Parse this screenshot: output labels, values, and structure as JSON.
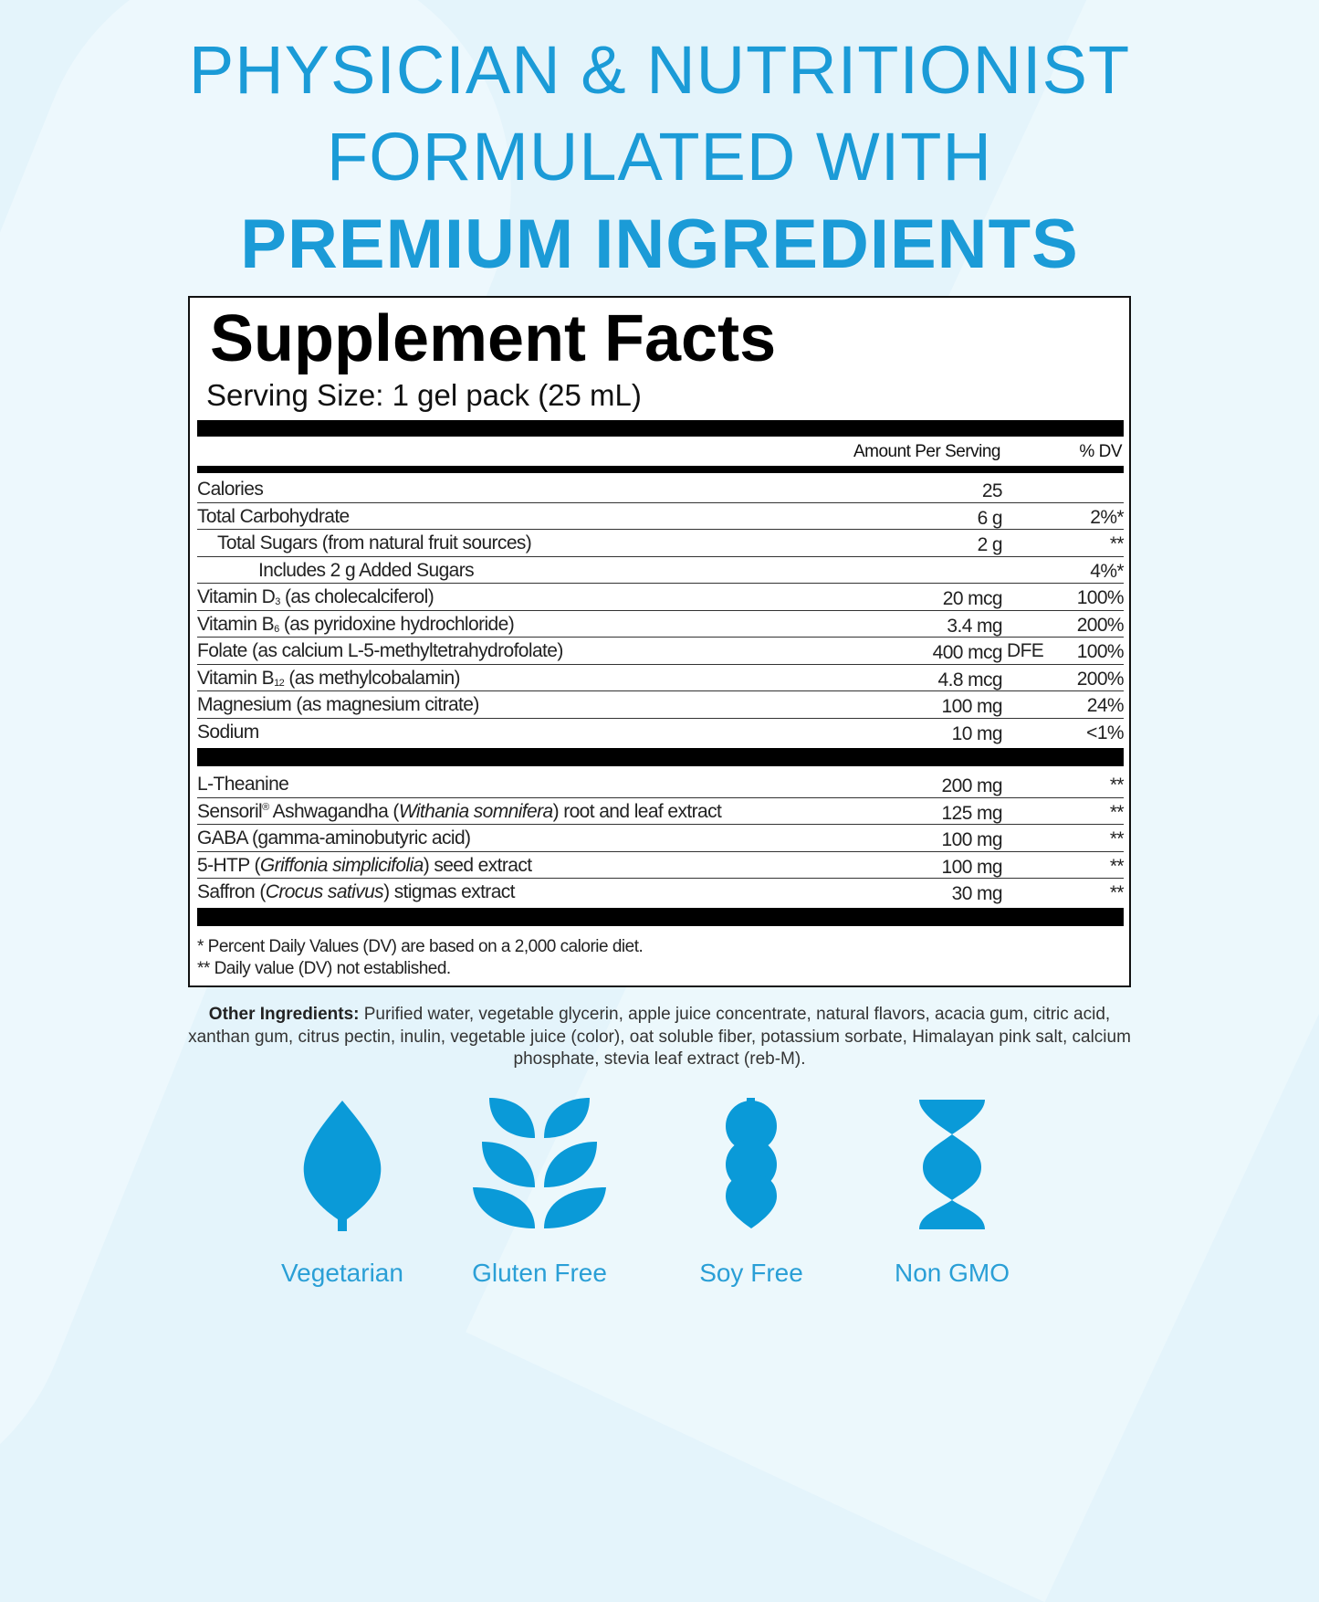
{
  "colors": {
    "accent": "#1b9bd7",
    "background": "#e4f4fb",
    "icon": "#0a9ad8"
  },
  "headline": {
    "line1": "PHYSICIAN & NUTRITIONIST",
    "line2": "FORMULATED WITH",
    "line3": "PREMIUM INGREDIENTS"
  },
  "facts": {
    "title": "Supplement Facts",
    "serving_size": "Serving Size: 1 gel pack (25 mL)",
    "col_amount": "Amount Per Serving",
    "col_dv": "% DV",
    "nutrients": [
      {
        "name": [
          {
            "t": "Calories"
          }
        ],
        "amount": "25",
        "dv": ""
      },
      {
        "name": [
          {
            "t": "Total Carbohydrate"
          }
        ],
        "amount": "6 g",
        "dv": "2%*"
      },
      {
        "name": [
          {
            "t": "Total Sugars (from natural fruit sources)"
          }
        ],
        "indent": 1,
        "amount": "2 g",
        "dv": "**"
      },
      {
        "name": [
          {
            "t": "Includes 2 g Added Sugars"
          }
        ],
        "indent": 2,
        "amount": "",
        "dv": "4%*"
      },
      {
        "name": [
          {
            "t": "Vitamin D"
          },
          {
            "t": "3",
            "s": "sub"
          },
          {
            "t": " (as cholecalciferol)"
          }
        ],
        "amount": "20 mcg",
        "dv": "100%"
      },
      {
        "name": [
          {
            "t": "Vitamin B"
          },
          {
            "t": "6",
            "s": "sub"
          },
          {
            "t": " (as pyridoxine hydrochloride)"
          }
        ],
        "amount": "3.4 mg",
        "dv": "200%"
      },
      {
        "name": [
          {
            "t": "Folate (as calcium L-5-methyltetrahydrofolate)"
          }
        ],
        "amount": "400 mcg",
        "extra": "DFE",
        "dv": "100%"
      },
      {
        "name": [
          {
            "t": "Vitamin B"
          },
          {
            "t": "12",
            "s": "sub"
          },
          {
            "t": " (as methylcobalamin)"
          }
        ],
        "amount": "4.8 mcg",
        "dv": "200%"
      },
      {
        "name": [
          {
            "t": "Magnesium (as magnesium citrate)"
          }
        ],
        "amount": "100 mg",
        "dv": "24%"
      },
      {
        "name": [
          {
            "t": "Sodium"
          }
        ],
        "amount": "10 mg",
        "dv": "<1%"
      }
    ],
    "actives": [
      {
        "name": [
          {
            "t": "L-Theanine"
          }
        ],
        "amount": "200 mg",
        "dv": "**"
      },
      {
        "name": [
          {
            "t": "Sensoril"
          },
          {
            "t": "®",
            "s": "sup"
          },
          {
            "t": " Ashwagandha ("
          },
          {
            "t": "Withania somnifera",
            "s": "i"
          },
          {
            "t": ") root and leaf extract"
          }
        ],
        "amount": "125 mg",
        "dv": "**"
      },
      {
        "name": [
          {
            "t": "GABA (gamma-aminobutyric acid)"
          }
        ],
        "amount": "100 mg",
        "dv": "**"
      },
      {
        "name": [
          {
            "t": "5-HTP ("
          },
          {
            "t": "Griffonia simplicifolia",
            "s": "i"
          },
          {
            "t": ") seed extract"
          }
        ],
        "amount": "100 mg",
        "dv": "**"
      },
      {
        "name": [
          {
            "t": "Saffron ("
          },
          {
            "t": "Crocus sativus",
            "s": "i"
          },
          {
            "t": ") stigmas extract"
          }
        ],
        "amount": "30 mg",
        "dv": "**"
      }
    ],
    "footnote1": "* Percent Daily Values (DV) are based on a 2,000 calorie diet.",
    "footnote2": "** Daily value (DV) not established."
  },
  "other_ingredients": {
    "label": "Other Ingredients:",
    "text": " Purified water, vegetable glycerin, apple juice concentrate, natural flavors, acacia gum, citric acid, xanthan gum, citrus pectin, inulin, vegetable juice (color), oat soluble fiber, potassium sorbate, Himalayan pink salt, calcium phosphate, stevia leaf extract (reb-M)."
  },
  "badges": [
    {
      "label": "Vegetarian",
      "icon": "leaf-icon"
    },
    {
      "label": "Gluten Free",
      "icon": "wheat-icon"
    },
    {
      "label": "Soy Free",
      "icon": "soybean-icon"
    },
    {
      "label": "Non GMO",
      "icon": "dna-icon"
    }
  ]
}
